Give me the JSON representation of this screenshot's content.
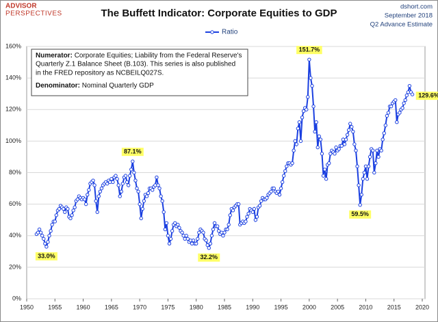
{
  "brand": {
    "line1": "ADVISOR",
    "line2": "PERSPECTIVES"
  },
  "source": {
    "site": "dshort.com",
    "date": "September 2018",
    "estimate": "Q2 Advance Estimate"
  },
  "chart_data": {
    "type": "line",
    "title": "The Buffett Indicator: Corporate Equities to GDP",
    "note": {
      "numerator_label": "Numerator:",
      "numerator_lines": [
        "Corporate Equities; Liability from the Federal Reserve's",
        "Quarterly Z.1 Balance Sheet (B.103). This series is also published",
        "in the FRED repository  as NCBEILQ027S."
      ],
      "denominator_label": "Denominator:",
      "denominator_text": "Nominal Quarterly GDP"
    },
    "x": [
      1951.75,
      1952,
      1952.25,
      1952.5,
      1952.75,
      1953,
      1953.25,
      1953.5,
      1953.75,
      1954,
      1954.25,
      1954.5,
      1954.75,
      1955,
      1955.25,
      1955.5,
      1955.75,
      1956,
      1956.25,
      1956.5,
      1956.75,
      1957,
      1957.25,
      1957.5,
      1957.75,
      1958,
      1958.25,
      1958.5,
      1958.75,
      1959,
      1959.25,
      1959.5,
      1959.75,
      1960,
      1960.25,
      1960.5,
      1960.75,
      1961,
      1961.25,
      1961.5,
      1961.75,
      1962,
      1962.25,
      1962.5,
      1962.75,
      1963,
      1963.25,
      1963.5,
      1963.75,
      1964,
      1964.25,
      1964.5,
      1964.75,
      1965,
      1965.25,
      1965.5,
      1965.75,
      1966,
      1966.25,
      1966.5,
      1966.75,
      1967,
      1967.25,
      1967.5,
      1967.75,
      1968,
      1968.25,
      1968.5,
      1968.75,
      1969,
      1969.25,
      1969.5,
      1969.75,
      1970,
      1970.25,
      1970.5,
      1970.75,
      1971,
      1971.25,
      1971.5,
      1971.75,
      1972,
      1972.25,
      1972.5,
      1972.75,
      1973,
      1973.25,
      1973.5,
      1973.75,
      1974,
      1974.25,
      1974.5,
      1974.75,
      1975,
      1975.25,
      1975.5,
      1975.75,
      1976,
      1976.25,
      1976.5,
      1976.75,
      1977,
      1977.25,
      1977.5,
      1977.75,
      1978,
      1978.25,
      1978.5,
      1978.75,
      1979,
      1979.25,
      1979.5,
      1979.75,
      1980,
      1980.25,
      1980.5,
      1980.75,
      1981,
      1981.25,
      1981.5,
      1981.75,
      1982,
      1982.25,
      1982.5,
      1982.75,
      1983,
      1983.25,
      1983.5,
      1983.75,
      1984,
      1984.25,
      1984.5,
      1984.75,
      1985,
      1985.25,
      1985.5,
      1985.75,
      1986,
      1986.25,
      1986.5,
      1986.75,
      1987,
      1987.25,
      1987.5,
      1987.75,
      1988,
      1988.25,
      1988.5,
      1988.75,
      1989,
      1989.25,
      1989.5,
      1989.75,
      1990,
      1990.25,
      1990.5,
      1990.75,
      1991,
      1991.25,
      1991.5,
      1991.75,
      1992,
      1992.25,
      1992.5,
      1992.75,
      1993,
      1993.25,
      1993.5,
      1993.75,
      1994,
      1994.25,
      1994.5,
      1994.75,
      1995,
      1995.25,
      1995.5,
      1995.75,
      1996,
      1996.25,
      1996.5,
      1996.75,
      1997,
      1997.25,
      1997.5,
      1997.75,
      1998,
      1998.25,
      1998.5,
      1998.75,
      1999,
      1999.25,
      1999.5,
      1999.75,
      2000,
      2000.25,
      2000.5,
      2000.75,
      2001,
      2001.25,
      2001.5,
      2001.75,
      2002,
      2002.25,
      2002.5,
      2002.75,
      2003,
      2003.25,
      2003.5,
      2003.75,
      2004,
      2004.25,
      2004.5,
      2004.75,
      2005,
      2005.25,
      2005.5,
      2005.75,
      2006,
      2006.25,
      2006.5,
      2006.75,
      2007,
      2007.25,
      2007.5,
      2007.75,
      2008,
      2008.25,
      2008.5,
      2008.75,
      2009,
      2009.25,
      2009.5,
      2009.75,
      2010,
      2010.25,
      2010.5,
      2010.75,
      2011,
      2011.25,
      2011.5,
      2011.75,
      2012,
      2012.25,
      2012.5,
      2012.75,
      2013,
      2013.25,
      2013.5,
      2013.75,
      2014,
      2014.25,
      2014.5,
      2014.75,
      2015,
      2015.25,
      2015.5,
      2015.75,
      2016,
      2016.25,
      2016.5,
      2016.75,
      2017,
      2017.25,
      2017.5,
      2017.75,
      2018,
      2018.25
    ],
    "series": [
      {
        "name": "Ratio",
        "color": "#1a3fe0",
        "values": [
          41,
          42,
          44,
          42,
          40,
          38,
          35,
          33.0,
          36,
          40,
          43,
          47,
          49,
          49,
          53,
          56,
          57,
          59,
          58,
          57,
          55,
          58,
          57,
          52,
          51,
          53,
          56,
          58,
          62,
          63,
          65,
          64,
          63,
          64,
          63,
          60,
          66,
          69,
          73,
          74,
          75,
          72,
          62,
          55,
          65,
          68,
          70,
          72,
          73,
          74,
          73,
          75,
          74,
          76,
          74,
          77,
          78,
          76,
          72,
          65,
          68,
          73,
          77,
          78,
          74,
          72,
          78,
          82,
          87.1,
          80,
          75,
          70,
          68,
          60,
          51,
          57,
          62,
          66,
          65,
          67,
          70,
          70,
          69,
          71,
          72,
          77,
          72,
          70,
          65,
          62,
          55,
          44,
          48,
          40,
          35,
          38,
          43,
          47,
          48,
          46,
          47,
          45,
          43,
          42,
          40,
          38,
          40,
          38,
          36,
          37,
          35,
          37,
          35,
          35,
          38,
          42,
          44,
          43,
          42,
          38,
          37,
          34,
          32.2,
          35,
          40,
          44,
          48,
          46,
          46,
          43,
          41,
          42,
          40,
          42,
          44,
          44,
          47,
          53,
          57,
          56,
          58,
          59,
          60,
          60,
          47,
          48,
          49,
          48,
          49,
          52,
          54,
          57,
          56,
          55,
          57,
          50,
          52,
          58,
          59,
          62,
          64,
          63,
          63,
          64,
          66,
          67,
          68,
          70,
          70,
          68,
          67,
          68,
          66,
          70,
          74,
          78,
          81,
          84,
          86,
          86,
          85,
          86,
          94,
          100,
          98,
          108,
          112,
          100,
          115,
          119,
          121,
          120,
          128,
          151.7,
          140,
          135,
          122,
          106,
          112,
          96,
          103,
          101,
          92,
          78,
          82,
          76,
          85,
          86,
          92,
          94,
          93,
          92,
          96,
          94,
          95,
          97,
          97,
          101,
          98,
          101,
          104,
          107,
          111,
          109,
          106,
          98,
          94,
          84,
          72,
          59.5,
          66,
          76,
          80,
          84,
          76,
          84,
          90,
          95,
          94,
          80,
          86,
          94,
          90,
          95,
          94,
          101,
          105,
          110,
          116,
          118,
          122,
          122,
          124,
          125,
          126,
          112,
          117,
          118,
          120,
          121,
          124,
          126,
          129,
          131,
          135,
          131,
          129.6
        ]
      }
    ],
    "annotations": [
      {
        "x": 1953.5,
        "value": 33.0,
        "label": "33.0%"
      },
      {
        "x": 1968.75,
        "value": 87.1,
        "label": "87.1%"
      },
      {
        "x": 1982.25,
        "value": 32.2,
        "label": "32.2%"
      },
      {
        "x": 2000,
        "value": 151.7,
        "label": "151.7%"
      },
      {
        "x": 2009,
        "value": 59.5,
        "label": "59.5%"
      },
      {
        "x": 2018.25,
        "value": 129.6,
        "label": "129.6%"
      }
    ],
    "xlim": [
      1950,
      2020
    ],
    "xticks": [
      1950,
      1955,
      1960,
      1965,
      1970,
      1975,
      1980,
      1985,
      1990,
      1995,
      2000,
      2005,
      2010,
      2015,
      2020
    ],
    "ylim": [
      0,
      160
    ],
    "yticks": [
      {
        "value": 0,
        "label": "0%"
      },
      {
        "value": 20,
        "label": "20%"
      },
      {
        "value": 40,
        "label": "40%"
      },
      {
        "value": 60,
        "label": "60%"
      },
      {
        "value": 80,
        "label": "80%"
      },
      {
        "value": 100,
        "label": "100%"
      },
      {
        "value": 120,
        "label": "120%"
      },
      {
        "value": 140,
        "label": "140%"
      },
      {
        "value": 160,
        "label": "160%"
      }
    ],
    "grid": true
  }
}
